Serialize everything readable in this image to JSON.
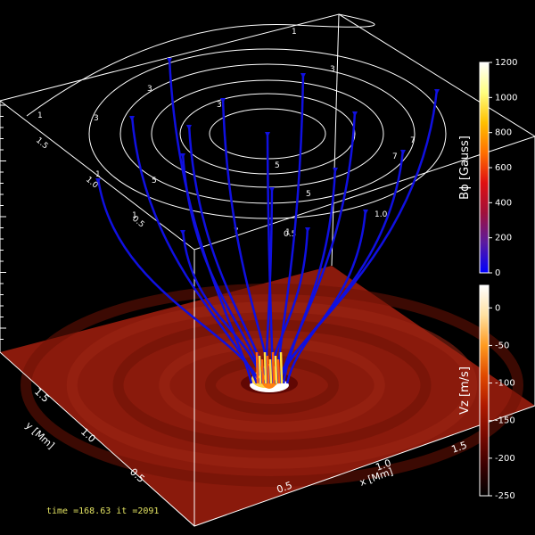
{
  "chart_data": {
    "type": "3d-surface",
    "status": "time =168.63 it =2091",
    "top_panel": {
      "contour_labels": [
        "1",
        "3",
        "3",
        "3",
        "3",
        "5",
        "5",
        "5",
        "7",
        "7",
        "7",
        "1",
        "1",
        "1",
        "1"
      ],
      "y_axis_ticks": [
        "1.5",
        "1.0",
        "0.5"
      ],
      "x_axis_ticks": [
        "1.0",
        "0.5"
      ],
      "field_line_count": 16,
      "field_line_color": "#1010e0"
    },
    "floor": {
      "x_axis": {
        "label": "x [Mm]",
        "ticks": [
          "0.5",
          "1.0",
          "1.5"
        ]
      },
      "y_axis": {
        "label": "y [Mm]",
        "ticks": [
          "0.5",
          "1.0",
          "1.5"
        ]
      },
      "background_color": "#8a1a0c"
    },
    "colorbars": [
      {
        "label": "Bϕ [Gauss]",
        "range": [
          0,
          1200
        ],
        "ticks": [
          {
            "value": 1200,
            "text": "1200"
          },
          {
            "value": 1000,
            "text": "1000"
          },
          {
            "value": 800,
            "text": "800"
          },
          {
            "value": 600,
            "text": "600"
          },
          {
            "value": 400,
            "text": "400"
          },
          {
            "value": 200,
            "text": "200"
          },
          {
            "value": 0,
            "text": "0"
          }
        ],
        "colors": [
          "#0000ff",
          "#5a1aa0",
          "#a0103a",
          "#e01010",
          "#ff7000",
          "#ffc000",
          "#ffff80",
          "#ffffff"
        ]
      },
      {
        "label": "Vz [m/s]",
        "range": [
          -250,
          30
        ],
        "ticks": [
          {
            "value": 0,
            "text": "0"
          },
          {
            "value": -50,
            "text": "-50"
          },
          {
            "value": -100,
            "text": "-100"
          },
          {
            "value": -150,
            "text": "-150"
          },
          {
            "value": -200,
            "text": "-200"
          },
          {
            "value": -250,
            "text": "-250"
          }
        ],
        "colors": [
          "#000000",
          "#3a0000",
          "#7a0a00",
          "#b01a00",
          "#e04a00",
          "#ff9a20",
          "#ffe0a0",
          "#ffffff"
        ]
      }
    ]
  }
}
